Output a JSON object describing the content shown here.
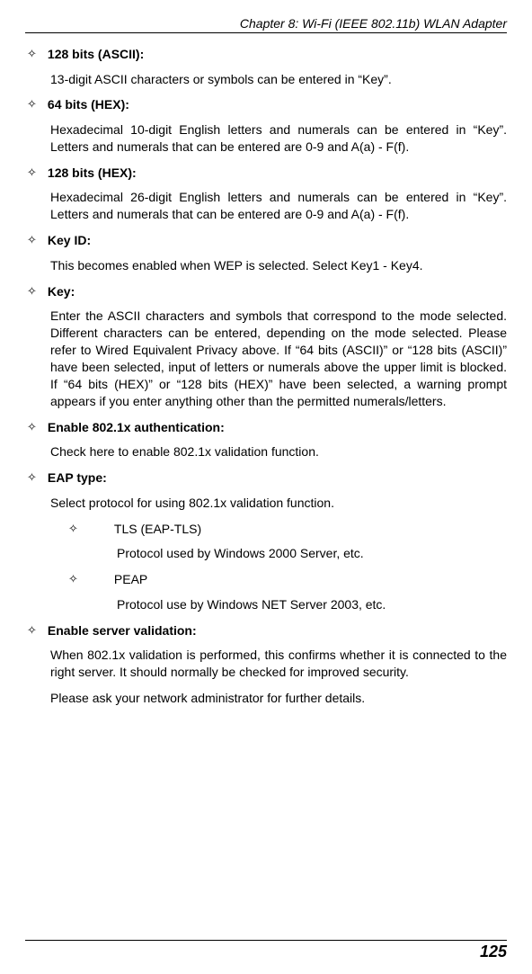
{
  "chapter_header": "Chapter 8: Wi-Fi (IEEE 802.11b) WLAN Adapter",
  "page_number": "125",
  "items": [
    {
      "title": "128 bits (ASCII):",
      "body": "13-digit ASCII characters or symbols can be entered in “Key”."
    },
    {
      "title": "64 bits (HEX):",
      "body": "Hexadecimal 10-digit English letters and numerals can be entered in “Key”.  Letters and numerals that can be entered are 0-9 and A(a) - F(f)."
    },
    {
      "title": "128 bits (HEX):",
      "body": "Hexadecimal 26-digit English letters and numerals can be entered in “Key”. Letters and numerals that can be entered are 0-9 and A(a) - F(f)."
    },
    {
      "title": "Key ID:",
      "body": "This becomes enabled when WEP is selected. Select Key1 - Key4."
    },
    {
      "title": "Key:",
      "body": "Enter the ASCII characters and symbols that correspond to the mode selected. Different characters can be entered, depending on the mode selected. Please refer to Wired Equivalent Privacy above. If “64 bits (ASCII)” or “128 bits (ASCII)” have been selected, input of letters or numerals above the upper limit is blocked. If “64 bits (HEX)” or “128 bits (HEX)” have been selected, a warning prompt appears if you enter anything other than the permitted numerals/letters."
    },
    {
      "title": "Enable 802.1x authentication:",
      "body": "Check here to enable 802.1x validation function."
    },
    {
      "title": "EAP type:",
      "body": "Select protocol for using 802.1x validation function.",
      "subitems": [
        {
          "label": "TLS (EAP-TLS)",
          "desc": "Protocol used by Windows 2000 Server, etc."
        },
        {
          "label": "PEAP",
          "desc": "Protocol use by Windows NET Server 2003, etc."
        }
      ]
    },
    {
      "title": "Enable server validation:",
      "body": "When 802.1x validation is performed, this confirms whether it is connected to the right server. It should normally be checked for improved security.",
      "body2": "Please ask your network administrator for further details."
    }
  ]
}
